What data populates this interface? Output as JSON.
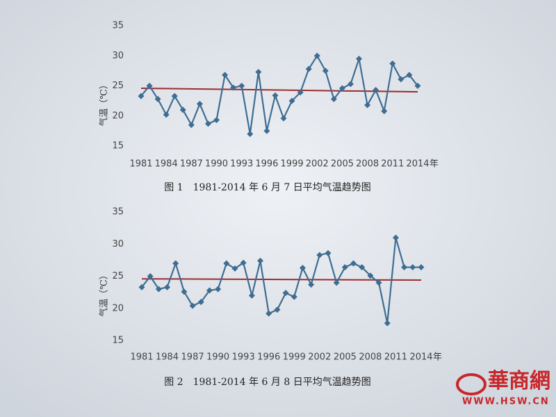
{
  "chart_data": [
    {
      "type": "line",
      "title": "图 1　1981-2014 年 6 月 7 日平均气温趋势图",
      "y_label": "气温（℃）",
      "x_label": "年",
      "categories": [
        "1981",
        null,
        null,
        "1984",
        null,
        null,
        "1987",
        null,
        null,
        "1990",
        null,
        null,
        "1993",
        null,
        null,
        "1996",
        null,
        null,
        "1999",
        null,
        null,
        "2002",
        null,
        null,
        "2005",
        null,
        null,
        "2008",
        null,
        null,
        "2011",
        null,
        null,
        "2014"
      ],
      "values": [
        23.3,
        25.0,
        22.8,
        20.2,
        23.3,
        21.0,
        18.5,
        22.0,
        18.7,
        19.3,
        26.8,
        24.7,
        25.0,
        17.0,
        27.3,
        17.5,
        23.4,
        19.6,
        22.5,
        23.9,
        27.8,
        30.0,
        27.5,
        22.8,
        24.6,
        25.3,
        29.5,
        21.8,
        24.3,
        20.8,
        28.7,
        26.1,
        26.8,
        25.0
      ],
      "color": "#3f6d92",
      "trend": {
        "color": "#9a2b2e",
        "values": [
          24.6,
          24.0
        ]
      },
      "ylim": [
        15,
        35
      ],
      "yticks": [
        15,
        20,
        25,
        30,
        35
      ],
      "grid": false
    },
    {
      "type": "line",
      "title": "图 2　1981-2014 年 6 月 8 日平均气温趋势图",
      "y_label": "气温（℃）",
      "x_label": "年",
      "categories": [
        "1981",
        null,
        null,
        "1984",
        null,
        null,
        "1987",
        null,
        null,
        "1990",
        null,
        null,
        "1993",
        null,
        null,
        "1996",
        null,
        null,
        "1999",
        null,
        null,
        "2002",
        null,
        null,
        "2005",
        null,
        null,
        "2008",
        null,
        null,
        "2011",
        null,
        null,
        "2014"
      ],
      "values": [
        23.3,
        25.0,
        23.0,
        23.3,
        27.0,
        22.6,
        20.4,
        21.0,
        22.8,
        23.0,
        27.0,
        26.2,
        27.1,
        22.0,
        27.4,
        19.2,
        19.8,
        22.4,
        21.8,
        26.3,
        23.7,
        28.3,
        28.6,
        24.0,
        26.4,
        27.0,
        26.4,
        25.1,
        24.0,
        17.7,
        31.0,
        26.4,
        26.4,
        26.4
      ],
      "color": "#3f6d92",
      "trend": {
        "color": "#9a2b2e",
        "values": [
          24.6,
          24.4
        ]
      },
      "ylim": [
        15,
        35
      ],
      "yticks": [
        15,
        20,
        25,
        30,
        35
      ],
      "grid": false
    }
  ],
  "watermark": {
    "text": "華商網",
    "url": "WWW.HSW.CN"
  }
}
